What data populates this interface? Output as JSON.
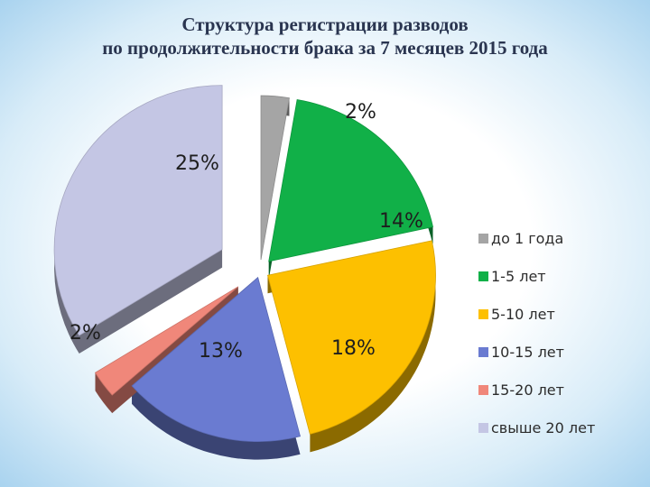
{
  "title": {
    "line1": "Структура регистрации разводов",
    "line2": "по продолжительности брака за 7 месяцев 2015 года"
  },
  "chart_data": {
    "type": "pie",
    "style": "3d-exploded",
    "title": "Структура регистрации разводов по продолжительности брака за 7 месяцев 2015 года",
    "legend_position": "right",
    "slices": [
      {
        "name": "до 1 года",
        "value": 2,
        "label": "2%",
        "color": "#a5a5a5"
      },
      {
        "name": "1-5 лет",
        "value": 14,
        "label": "14%",
        "color": "#11b048"
      },
      {
        "name": "5-10 лет",
        "value": 18,
        "label": "18%",
        "color": "#fdc000"
      },
      {
        "name": "10-15 лет",
        "value": 13,
        "label": "13%",
        "color": "#6a7bd1"
      },
      {
        "name": "15-20 лет",
        "value": 2,
        "label": "2%",
        "color": "#f0877a"
      },
      {
        "name": "свыше 20 лет",
        "value": 25,
        "label": "25%",
        "color": "#c4c6e4"
      }
    ]
  }
}
